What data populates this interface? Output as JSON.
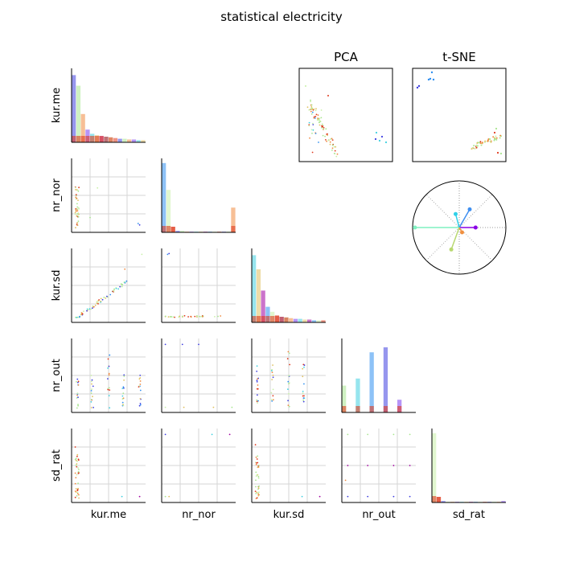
{
  "chart_data": {
    "type": "scatter",
    "title": "statistical electricity",
    "variables": [
      "kur.me",
      "nr_nor",
      "kur.sd",
      "nr_out",
      "sd_rat"
    ],
    "grid": true,
    "colors": [
      "#3f3fe0",
      "#2f8ff0",
      "#3fd0e0",
      "#a8e68f",
      "#c8f0a8",
      "#e0c060",
      "#f08a40",
      "#e03a1e",
      "#a000a0",
      "#7a3cf0"
    ],
    "panel_titles": {
      "pca": "PCA",
      "tsne": "t-SNE"
    },
    "histograms": {
      "kur.me": {
        "values": [
          95,
          80,
          40,
          18,
          12,
          10,
          9,
          8,
          7,
          6,
          5,
          5,
          4,
          4,
          3,
          3
        ]
      },
      "nr_nor": {
        "values": [
          98,
          60,
          8,
          2,
          2,
          1,
          1,
          1,
          1,
          1,
          1,
          1,
          1,
          1,
          1,
          35
        ]
      },
      "kur.sd": {
        "values": [
          95,
          75,
          45,
          22,
          15,
          10,
          8,
          7,
          6,
          5,
          5,
          4,
          4,
          3,
          3,
          3
        ]
      },
      "nr_out": {
        "values": [
          38,
          0,
          0,
          48,
          0,
          0,
          85,
          0,
          0,
          92,
          0,
          0,
          18,
          0,
          0,
          0
        ]
      },
      "sd_rat": {
        "values": [
          98,
          8,
          2,
          1,
          1,
          1,
          1,
          1,
          1,
          1,
          1,
          1,
          1,
          1,
          1,
          2
        ]
      }
    },
    "loadings": [
      {
        "angle": 180,
        "length": 0.95,
        "color": "#7ff0c0"
      },
      {
        "angle": 0,
        "length": 0.35,
        "color": "#8a00e6"
      },
      {
        "angle": 60,
        "length": 0.45,
        "color": "#3f8ff0"
      },
      {
        "angle": 105,
        "length": 0.3,
        "color": "#30d0e8"
      },
      {
        "angle": 250,
        "length": 0.5,
        "color": "#b8d870"
      },
      {
        "angle": 300,
        "length": 0.12,
        "color": "#f09040"
      }
    ]
  }
}
